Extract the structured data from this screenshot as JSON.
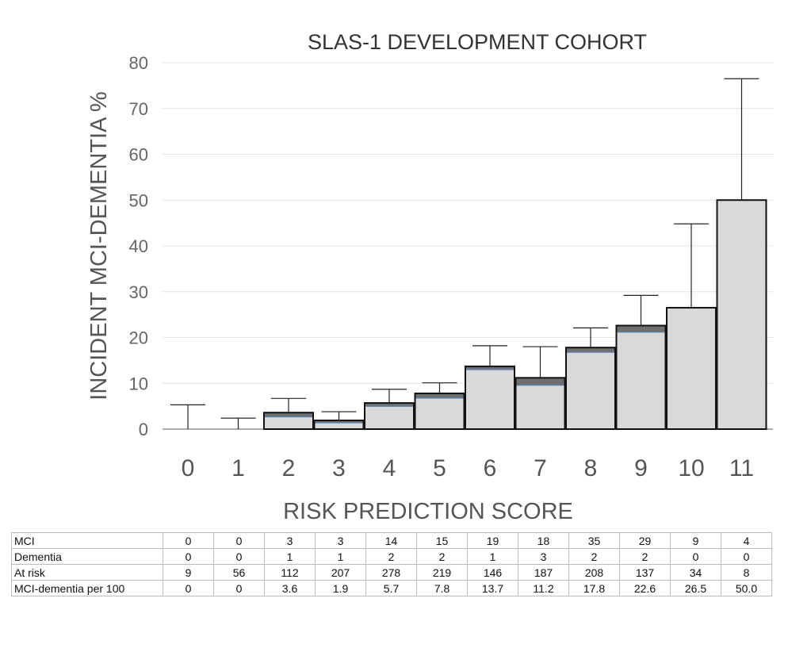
{
  "chart_data": {
    "type": "bar",
    "title": "SLAS-1 DEVELOPMENT COHORT",
    "xlabel": "RISK PREDICTION SCORE",
    "ylabel": "INCIDENT  MCI-DEMENTIA %",
    "ylim": [
      0,
      80
    ],
    "yticks": [
      0,
      10,
      20,
      30,
      40,
      50,
      60,
      70,
      80
    ],
    "grid": true,
    "categories": [
      "0",
      "1",
      "2",
      "3",
      "4",
      "5",
      "6",
      "7",
      "8",
      "9",
      "10",
      "11"
    ],
    "series": [
      {
        "values": [
          0,
          0,
          3.6,
          1.9,
          5.7,
          7.8,
          13.7,
          11.2,
          17.8,
          22.6,
          26.5,
          50.0
        ]
      }
    ],
    "mci_segment": [
      0,
      0,
      2.7,
      1.4,
      5.0,
      6.8,
      13.0,
      9.6,
      16.8,
      21.2,
      26.5,
      50.0
    ],
    "error_upper": [
      5.3,
      2.4,
      6.7,
      3.8,
      8.7,
      10.1,
      18.2,
      18.0,
      22.1,
      29.2,
      44.8,
      76.5
    ],
    "colors": {
      "bar_fill": "#d9d9d9",
      "dementia_fill": "#6f6f6f",
      "mci_line": "#5b7fa6",
      "gridline": "#e4e4e4"
    }
  },
  "table": {
    "rows": [
      {
        "label": "MCI",
        "values": [
          "0",
          "0",
          "3",
          "3",
          "14",
          "15",
          "19",
          "18",
          "35",
          "29",
          "9",
          "4"
        ]
      },
      {
        "label": "Dementia",
        "values": [
          "0",
          "0",
          "1",
          "1",
          "2",
          "2",
          "1",
          "3",
          "2",
          "2",
          "0",
          "0"
        ]
      },
      {
        "label": "At risk",
        "values": [
          "9",
          "56",
          "112",
          "207",
          "278",
          "219",
          "146",
          "187",
          "208",
          "137",
          "34",
          "8"
        ]
      },
      {
        "label": "MCI-dementia per 100",
        "values": [
          "0",
          "0",
          "3.6",
          "1.9",
          "5.7",
          "7.8",
          "13.7",
          "11.2",
          "17.8",
          "22.6",
          "26.5",
          "50.0"
        ]
      }
    ]
  }
}
